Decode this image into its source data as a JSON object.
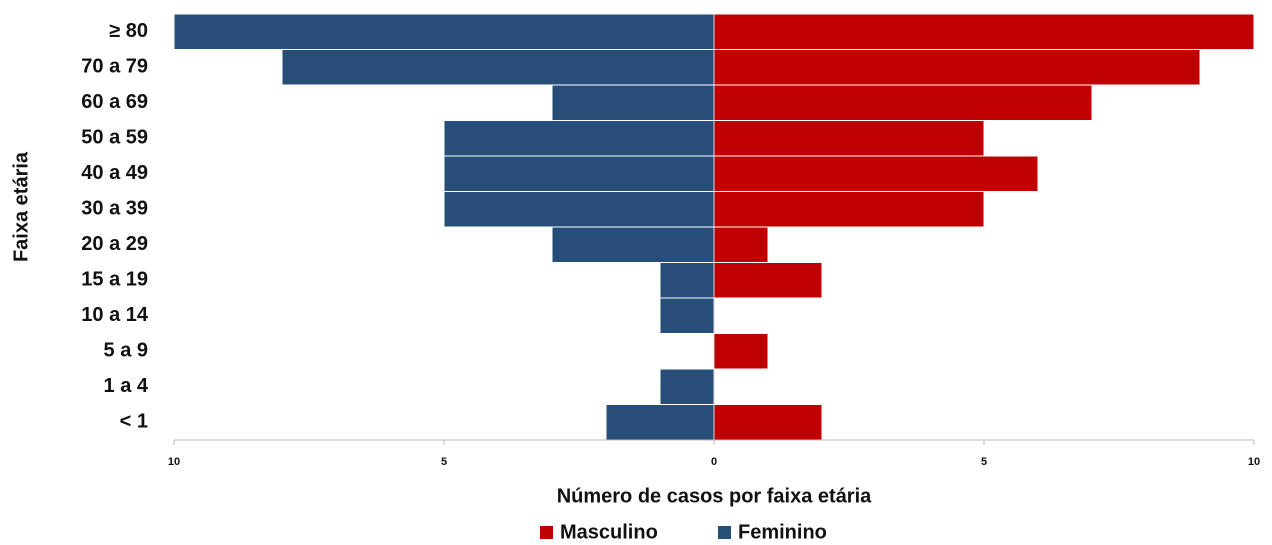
{
  "chart_data": {
    "type": "bar",
    "orientation": "horizontal",
    "y_label": "Faixa etária",
    "x_label": "Número de casos por faixa etária",
    "categories": [
      "≥ 80",
      "70 a 79",
      "60 a 69",
      "50 a 59",
      "40 a 49",
      "30 a 39",
      "20 a 29",
      "15 a 19",
      "10 a 14",
      "5 a 9",
      "1 a 4",
      "< 1"
    ],
    "series": [
      {
        "name": "Masculino",
        "color": "#c00000",
        "values": [
          10,
          9,
          7,
          5,
          6,
          5,
          1,
          2,
          0,
          1,
          0,
          2
        ]
      },
      {
        "name": "Feminino",
        "color": "#264e79",
        "values": [
          -10,
          -8,
          -3,
          -5,
          -5,
          -5,
          -3,
          -1,
          -1,
          0,
          -1,
          -2
        ]
      }
    ],
    "xlim": [
      -10,
      10
    ],
    "xticks": [
      {
        "value": -10,
        "label": "10"
      },
      {
        "value": -5,
        "label": "5"
      },
      0,
      5,
      10
    ],
    "legend": "bottom"
  }
}
